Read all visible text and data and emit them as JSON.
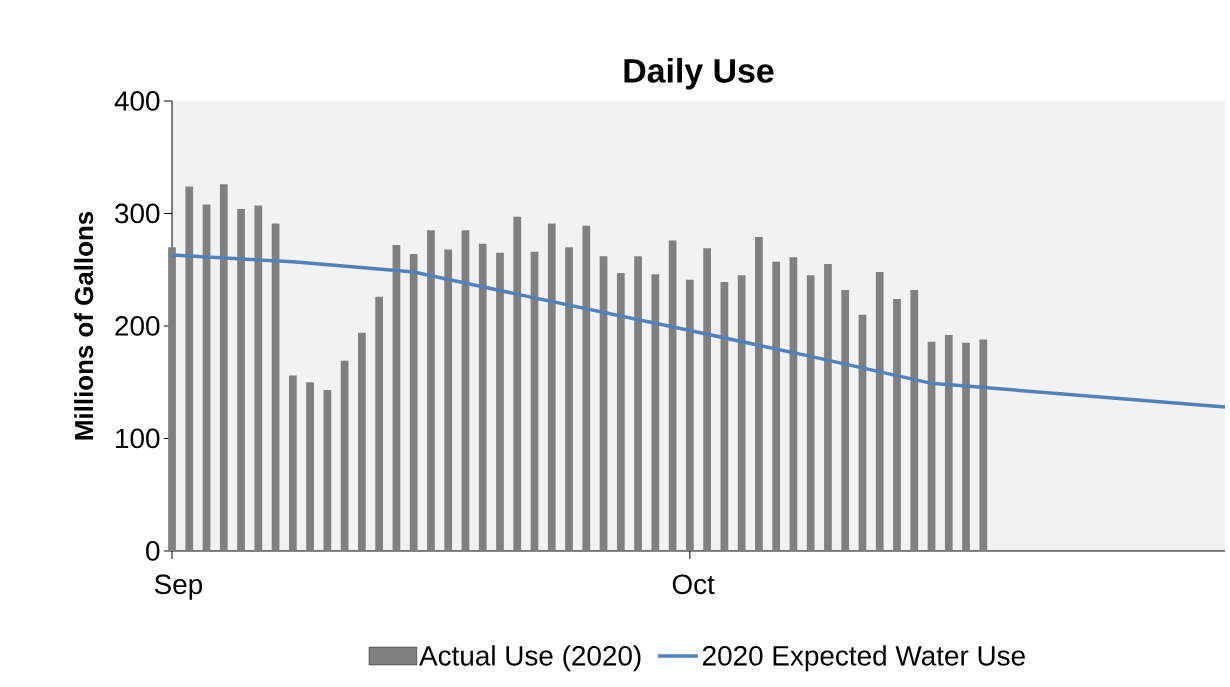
{
  "chart_data": {
    "type": "bar",
    "title": "Daily Use",
    "ylabel": "Millions of Gallons",
    "x": [
      "2020-09-01",
      "2020-09-02",
      "2020-09-03",
      "2020-09-04",
      "2020-09-05",
      "2020-09-06",
      "2020-09-07",
      "2020-09-08",
      "2020-09-09",
      "2020-09-10",
      "2020-09-11",
      "2020-09-12",
      "2020-09-13",
      "2020-09-14",
      "2020-09-15",
      "2020-09-16",
      "2020-09-17",
      "2020-09-18",
      "2020-09-19",
      "2020-09-20",
      "2020-09-21",
      "2020-09-22",
      "2020-09-23",
      "2020-09-24",
      "2020-09-25",
      "2020-09-26",
      "2020-09-27",
      "2020-09-28",
      "2020-09-29",
      "2020-09-30",
      "2020-10-01",
      "2020-10-02",
      "2020-10-03",
      "2020-10-04",
      "2020-10-05",
      "2020-10-06",
      "2020-10-07",
      "2020-10-08",
      "2020-10-09",
      "2020-10-10",
      "2020-10-11",
      "2020-10-12",
      "2020-10-13",
      "2020-10-14",
      "2020-10-15",
      "2020-10-16",
      "2020-10-17",
      "2020-10-18"
    ],
    "series": [
      {
        "name": "Actual Use (2020)",
        "color": "#808080",
        "values": [
          270,
          324,
          308,
          326,
          304,
          307,
          291,
          156,
          150,
          143,
          169,
          194,
          226,
          272,
          264,
          285,
          268,
          285,
          273,
          265,
          297,
          266,
          291,
          270,
          289,
          262,
          247,
          262,
          246,
          276,
          241,
          269,
          239,
          245,
          279,
          257,
          261,
          245,
          255,
          232,
          210,
          248,
          224,
          232,
          186,
          192,
          185,
          188
        ]
      },
      {
        "name": "2020 Expected Water Use",
        "type": "line",
        "color": "#4f81bd",
        "x": [
          "2020-09-01",
          "2020-09-08",
          "2020-09-15",
          "2020-09-22",
          "2020-10-01",
          "2020-10-08",
          "2020-10-15",
          "2020-11-01"
        ],
        "values": [
          263,
          257,
          248,
          225,
          196,
          173,
          149,
          128
        ]
      }
    ],
    "xlim": [
      "2020-09-01",
      "2020-11-01"
    ],
    "xticks": [
      {
        "value": "2020-09-01",
        "label": "Sep"
      },
      {
        "value": "2020-10-01",
        "label": "Oct"
      }
    ],
    "ylim": [
      0,
      400
    ],
    "yticks": [
      0,
      100,
      200,
      300,
      400
    ],
    "grid": false,
    "legend": "bottom"
  }
}
